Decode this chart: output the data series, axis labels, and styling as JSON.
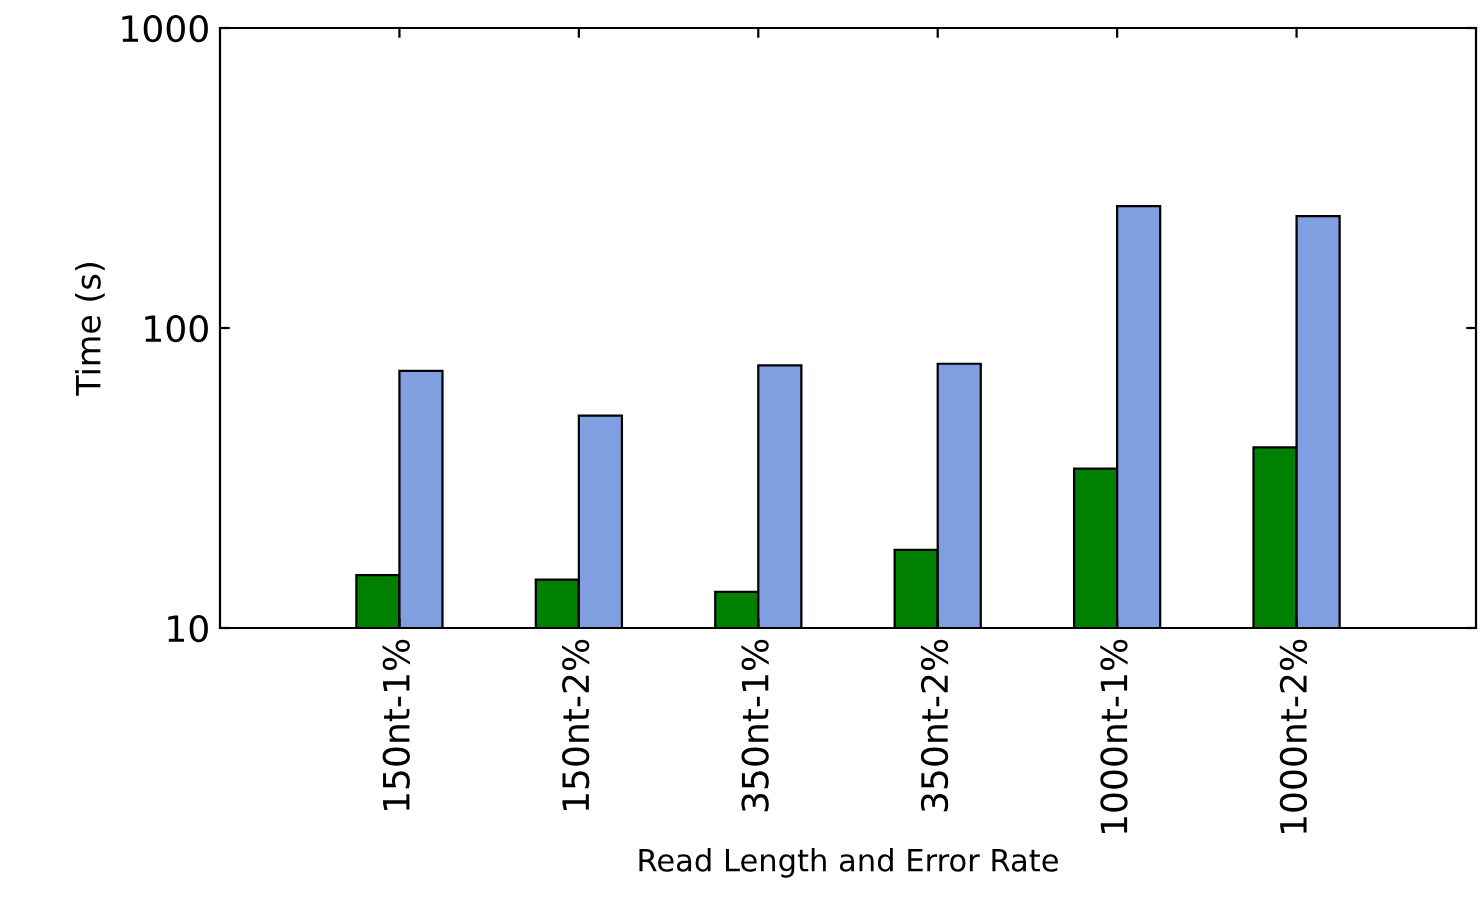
{
  "chart_data": {
    "type": "bar",
    "xlabel": "Read Length and Error Rate",
    "ylabel": "Time (s)",
    "categories": [
      "150nt-1%",
      "150nt-2%",
      "350nt-1%",
      "350nt-2%",
      "1000nt-1%",
      "1000nt-2%"
    ],
    "series": [
      {
        "color": "#008000",
        "values": [
          15,
          14.5,
          13.2,
          18.2,
          34,
          40
        ]
      },
      {
        "color": "#7f9fe0",
        "values": [
          72,
          51,
          75,
          76,
          255,
          236
        ]
      }
    ],
    "log": "y",
    "ylim": [
      10,
      1000
    ],
    "yticks": [
      10,
      100,
      1000
    ],
    "grid": false,
    "legend": false
  }
}
